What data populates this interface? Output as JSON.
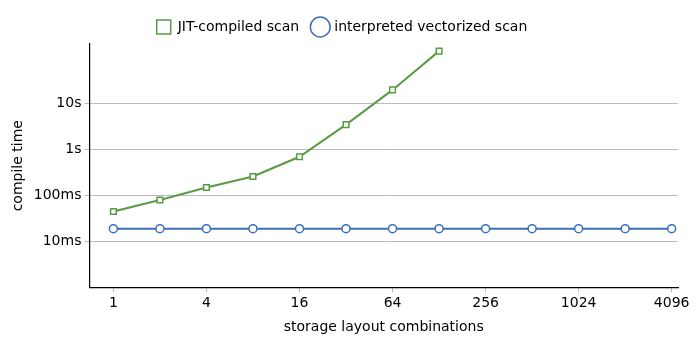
{
  "chart_data": {
    "type": "line",
    "x_label": "storage layout combinations",
    "y_label": "compile time",
    "log": true,
    "grid": "y",
    "legend": "top",
    "x": [
      1,
      2,
      4,
      8,
      16,
      32,
      64,
      128,
      256,
      512,
      1024,
      2048,
      4096
    ],
    "xlim": [
      0.7,
      4500
    ],
    "xticks": [
      1,
      4,
      16,
      64,
      256,
      1024,
      4096
    ],
    "ylim": [
      0.001,
      200
    ],
    "yticks": [
      {
        "value": 0.01,
        "label": "10ms"
      },
      {
        "value": 0.1,
        "label": "100ms"
      },
      {
        "value": 1,
        "label": "1s"
      },
      {
        "value": 10,
        "label": "10s"
      }
    ],
    "series": [
      {
        "name": "JIT-compiled scan",
        "color": "#5b9a45",
        "marker": "square",
        "values": [
          0.045,
          0.08,
          0.15,
          0.26,
          0.7,
          3.5,
          20,
          140,
          null,
          null,
          null,
          null,
          null
        ]
      },
      {
        "name": "interpreted vectorized scan",
        "color": "#3b6fb6",
        "marker": "circle",
        "values": [
          0.019,
          0.019,
          0.019,
          0.019,
          0.019,
          0.019,
          0.019,
          0.019,
          0.019,
          0.019,
          0.019,
          0.019,
          0.019
        ]
      }
    ]
  }
}
